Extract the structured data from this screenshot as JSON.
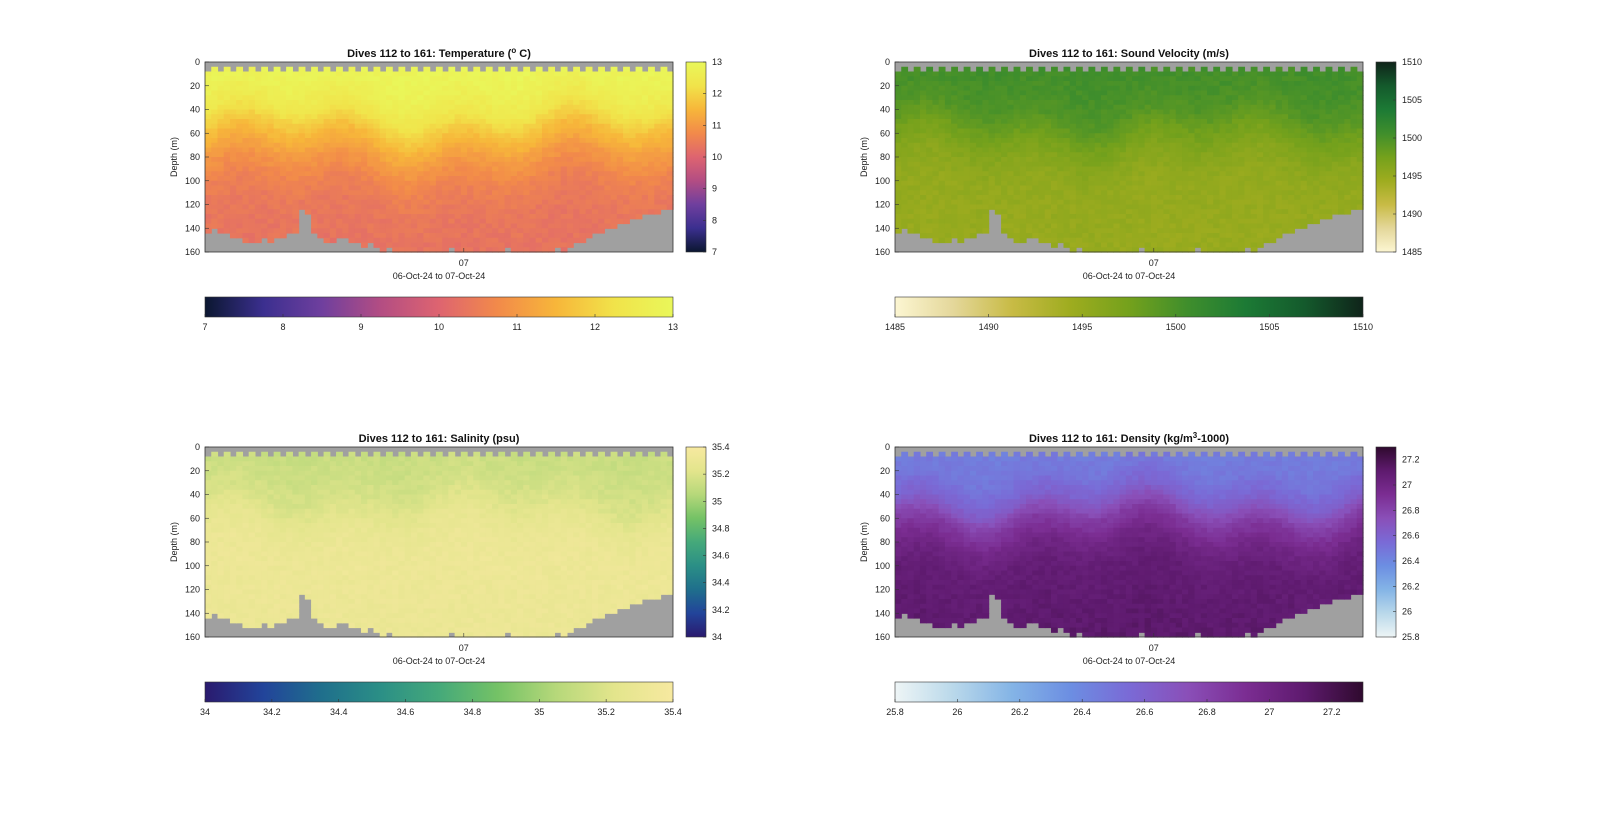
{
  "figure": {
    "background": "#ffffff",
    "missing_color": "#a0a0a0"
  },
  "chart_data": [
    {
      "type": "heatmap",
      "id": "temperature",
      "title_prefix": "Dives 112 to 161: Temperature (",
      "title_sup": "o",
      "title_suffix": " C)",
      "ylabel": "Depth (m)",
      "x_tick_label": "07",
      "xlabel": "06-Oct-24 to 07-Oct-24",
      "y_ticks": [
        "0",
        "20",
        "40",
        "60",
        "80",
        "100",
        "120",
        "140",
        "160"
      ],
      "ylim": [
        0,
        160
      ],
      "colormap": [
        "#0b1730",
        "#3b2f8f",
        "#6f3f9e",
        "#b34d83",
        "#de6470",
        "#f28a4a",
        "#f7b63a",
        "#f1e34a",
        "#e9f75a"
      ],
      "clim": [
        7,
        13
      ],
      "vertical_colorbar_ticks": [
        "7",
        "8",
        "9",
        "10",
        "11",
        "12",
        "13"
      ],
      "horizontal_colorbar_ticks": [
        "7",
        "8",
        "9",
        "10",
        "11",
        "12",
        "13"
      ],
      "surface_value": 12.8,
      "deep_value": 10.4,
      "profile": [
        [
          0,
          12.9
        ],
        [
          20,
          12.8
        ],
        [
          40,
          12.4
        ],
        [
          60,
          11.6
        ],
        [
          80,
          11.0
        ],
        [
          100,
          10.6
        ],
        [
          120,
          10.4
        ],
        [
          160,
          10.3
        ]
      ]
    },
    {
      "type": "heatmap",
      "id": "sound_velocity",
      "title_prefix": "Dives 112 to 161: Sound Velocity (m/s)",
      "title_sup": "",
      "title_suffix": "",
      "ylabel": "Depth (m)",
      "x_tick_label": "07",
      "xlabel": "06-Oct-24 to 07-Oct-24",
      "y_ticks": [
        "0",
        "20",
        "40",
        "60",
        "80",
        "100",
        "120",
        "140",
        "160"
      ],
      "ylim": [
        0,
        160
      ],
      "colormap": [
        "#fcf6d2",
        "#e4d79a",
        "#c8bb45",
        "#9eac1f",
        "#74a11c",
        "#3f8e2c",
        "#1c7a35",
        "#145a2c",
        "#0f241a"
      ],
      "clim": [
        1485,
        1510
      ],
      "vertical_colorbar_ticks": [
        "1485",
        "1490",
        "1495",
        "1500",
        "1505",
        "1510"
      ],
      "horizontal_colorbar_ticks": [
        "1485",
        "1490",
        "1495",
        "1500",
        "1505",
        "1510"
      ],
      "profile": [
        [
          0,
          1500.5
        ],
        [
          20,
          1500.2
        ],
        [
          40,
          1499.5
        ],
        [
          60,
          1497.5
        ],
        [
          80,
          1496.0
        ],
        [
          100,
          1495.2
        ],
        [
          160,
          1494.8
        ]
      ]
    },
    {
      "type": "heatmap",
      "id": "salinity",
      "title_prefix": "Dives 112 to 161: Salinity (psu)",
      "title_sup": "",
      "title_suffix": "",
      "ylabel": "Depth (m)",
      "x_tick_label": "07",
      "xlabel": "06-Oct-24 to 07-Oct-24",
      "y_ticks": [
        "0",
        "20",
        "40",
        "60",
        "80",
        "100",
        "120",
        "140",
        "160"
      ],
      "ylim": [
        0,
        160
      ],
      "colormap": [
        "#2a1a6e",
        "#22449a",
        "#1f6f8c",
        "#2b8f86",
        "#45a97a",
        "#74c266",
        "#b6d87a",
        "#e3e58c",
        "#f7e9a0"
      ],
      "clim": [
        34,
        35.4
      ],
      "vertical_colorbar_ticks": [
        "34",
        "34.2",
        "34.4",
        "34.6",
        "34.8",
        "35",
        "35.2",
        "35.4"
      ],
      "horizontal_colorbar_ticks": [
        "34",
        "34.2",
        "34.4",
        "34.6",
        "34.8",
        "35",
        "35.2",
        "35.4"
      ],
      "profile": [
        [
          0,
          35.12
        ],
        [
          20,
          35.14
        ],
        [
          40,
          35.18
        ],
        [
          60,
          35.26
        ],
        [
          80,
          35.3
        ],
        [
          100,
          35.31
        ],
        [
          160,
          35.3
        ]
      ]
    },
    {
      "type": "heatmap",
      "id": "density",
      "title_prefix": "Dives 112 to 161: Density (kg/m",
      "title_sup": "3",
      "title_suffix": "-1000)",
      "ylabel": "Depth (m)",
      "x_tick_label": "07",
      "xlabel": "06-Oct-24 to 07-Oct-24",
      "y_ticks": [
        "0",
        "20",
        "40",
        "60",
        "80",
        "100",
        "120",
        "140",
        "160"
      ],
      "ylim": [
        0,
        160
      ],
      "colormap": [
        "#eef5f6",
        "#b9d8ea",
        "#84b4e6",
        "#6c8ee2",
        "#7a6ad6",
        "#8a4fb8",
        "#7b2d92",
        "#5e1a6e",
        "#2f0a2e"
      ],
      "clim": [
        25.8,
        27.3
      ],
      "vertical_colorbar_ticks": [
        "25.8",
        "26",
        "26.2",
        "26.4",
        "26.6",
        "26.8",
        "27",
        "27.2"
      ],
      "horizontal_colorbar_ticks": [
        "25.8",
        "26",
        "26.2",
        "26.4",
        "26.6",
        "26.8",
        "27",
        "27.2"
      ],
      "profile": [
        [
          0,
          26.45
        ],
        [
          20,
          26.48
        ],
        [
          40,
          26.6
        ],
        [
          60,
          26.85
        ],
        [
          80,
          27.0
        ],
        [
          100,
          27.08
        ],
        [
          160,
          27.12
        ]
      ]
    }
  ],
  "bottom_depth_profile_m": [
    140,
    138,
    140,
    142,
    147,
    146,
    150,
    148,
    150,
    147,
    148,
    145,
    144,
    142,
    140,
    120,
    125,
    140,
    145,
    150,
    148,
    145,
    147,
    150,
    150,
    152,
    150,
    155,
    157,
    155,
    156,
    158,
    160,
    158,
    157,
    156,
    158,
    157,
    158,
    155,
    157,
    159,
    160,
    158,
    157,
    158,
    157,
    156,
    155,
    157,
    158,
    159,
    157,
    158,
    157,
    156,
    155,
    156,
    153,
    150,
    148,
    145,
    142,
    140,
    138,
    136,
    134,
    132,
    130,
    128,
    126,
    125,
    124,
    123,
    122
  ],
  "surface_gap_m": 3
}
